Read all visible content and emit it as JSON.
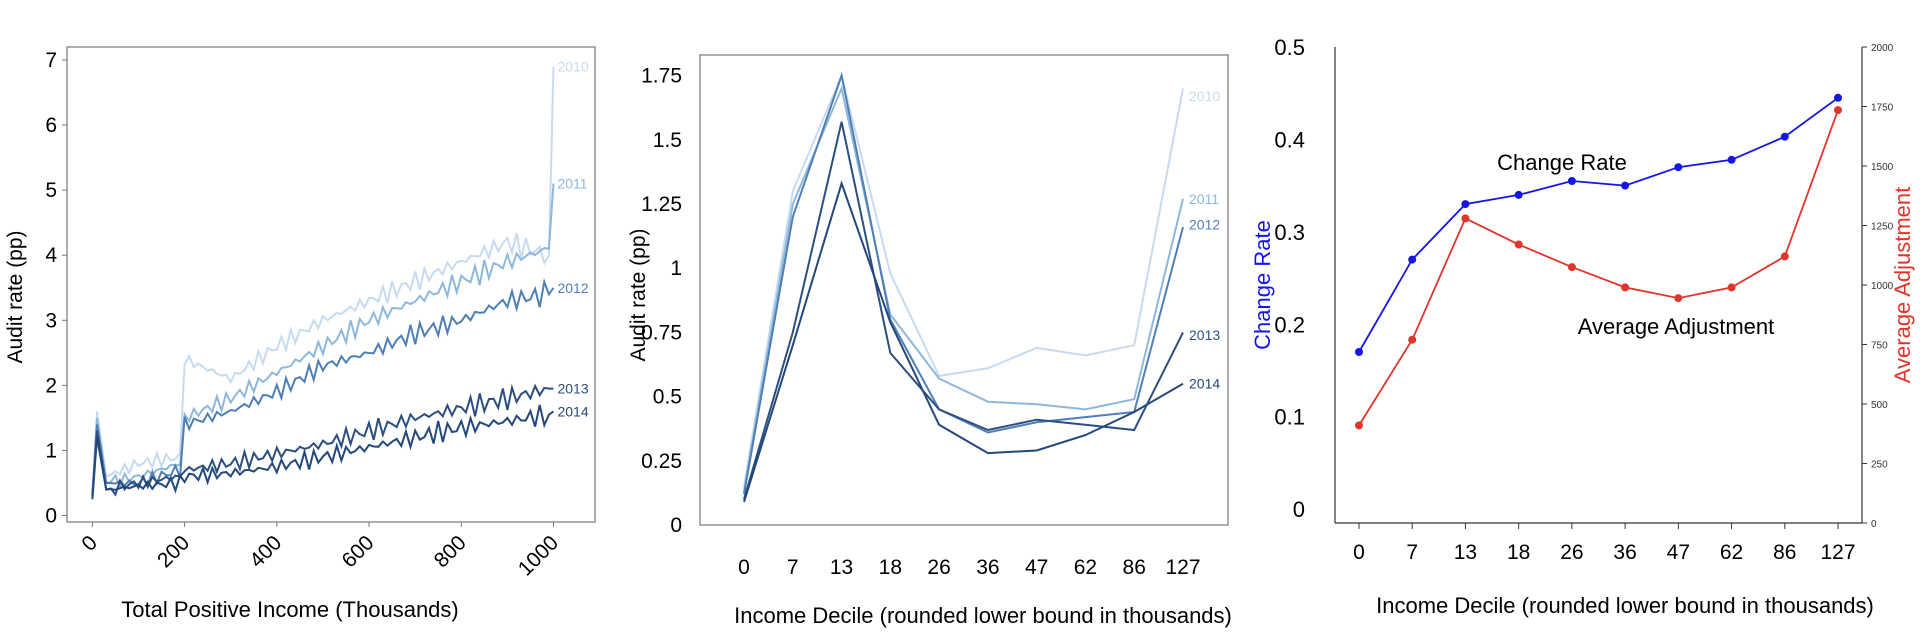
{
  "charts": {
    "chart1": {
      "xlabel": "Total Positive Income (Thousands)",
      "ylabel": "Audit rate (pp)",
      "xlim": [
        -55,
        1090
      ],
      "ylim": [
        -0.1,
        7.2
      ],
      "xticks": [
        "0",
        "200",
        "400",
        "600",
        "800",
        "1000"
      ],
      "yticks": [
        "0",
        "1",
        "2",
        "3",
        "4",
        "5",
        "6",
        "7"
      ]
    },
    "chart2": {
      "xlabel": "Income Decile (rounded lower bound in thousands)",
      "ylabel": "Audit rate (pp)",
      "ylim": [
        0,
        1.83
      ],
      "yticks": [
        "0",
        "0.25",
        "0.5",
        "0.75",
        "1",
        "1.25",
        "1.5",
        "1.75"
      ]
    },
    "chart3": {
      "xlabel": "Income Decile (rounded lower bound in thousands)",
      "ylabel_left": "Change Rate",
      "ylabel_right": "Average Adjustment",
      "ylim_left": [
        -0.015,
        0.5
      ],
      "ylim_right": [
        0,
        2000
      ],
      "yticks_left": [
        "0",
        "0.1",
        "0.2",
        "0.3",
        "0.4",
        "0.5"
      ],
      "yticks_right": [
        "0",
        "250",
        "500",
        "750",
        "1000",
        "1250",
        "1500",
        "1750",
        "2000"
      ],
      "annotation_change": "Change Rate",
      "annotation_adjust": "Average Adjustment"
    }
  },
  "colors": {
    "2010": "#c6dbef",
    "2011": "#8eb8db",
    "2012": "#4f7fb5",
    "2013": "#2c4f80",
    "2014": "#24487a",
    "change": "#1515e8",
    "adjust": "#e0352b"
  },
  "chart_data": [
    {
      "type": "line",
      "xlabel": "Total Positive Income (Thousands)",
      "ylabel": "Audit rate (pp)",
      "xlim": [
        -55,
        1090
      ],
      "ylim": [
        0,
        7
      ],
      "x_anchor": [
        0,
        10,
        30,
        100,
        190,
        200,
        300,
        400,
        500,
        600,
        700,
        800,
        900,
        990,
        1000
      ],
      "series": [
        {
          "name": "2010",
          "values": [
            0.3,
            1.6,
            0.6,
            0.8,
            0.9,
            2.4,
            2.1,
            2.6,
            3.0,
            3.3,
            3.6,
            3.9,
            4.2,
            4.0,
            6.9
          ]
        },
        {
          "name": "2011",
          "values": [
            0.3,
            1.5,
            0.5,
            0.6,
            0.8,
            1.5,
            1.8,
            2.2,
            2.6,
            3.0,
            3.3,
            3.6,
            3.9,
            4.1,
            5.1
          ]
        },
        {
          "name": "2012",
          "values": [
            0.3,
            1.4,
            0.5,
            0.5,
            0.7,
            1.4,
            1.6,
            1.9,
            2.3,
            2.5,
            2.8,
            3.0,
            3.3,
            3.4,
            3.5
          ]
        },
        {
          "name": "2013",
          "values": [
            0.3,
            1.3,
            0.4,
            0.5,
            0.6,
            0.7,
            0.8,
            0.95,
            1.1,
            1.3,
            1.5,
            1.65,
            1.8,
            1.95,
            1.95
          ]
        },
        {
          "name": "2014",
          "values": [
            0.25,
            1.2,
            0.4,
            0.45,
            0.5,
            0.6,
            0.65,
            0.75,
            0.9,
            1.05,
            1.2,
            1.35,
            1.45,
            1.55,
            1.6
          ]
        }
      ]
    },
    {
      "type": "line",
      "xlabel": "Income Decile (rounded lower bound in thousands)",
      "ylabel": "Audit rate (pp)",
      "categories": [
        "0",
        "7",
        "13",
        "18",
        "26",
        "36",
        "47",
        "62",
        "86",
        "127"
      ],
      "ylim": [
        0,
        1.83
      ],
      "series": [
        {
          "name": "2010",
          "values": [
            0.15,
            1.3,
            1.75,
            0.98,
            0.58,
            0.61,
            0.69,
            0.66,
            0.7,
            1.7
          ]
        },
        {
          "name": "2011",
          "values": [
            0.13,
            1.25,
            1.7,
            0.82,
            0.57,
            0.48,
            0.47,
            0.45,
            0.49,
            1.27
          ]
        },
        {
          "name": "2012",
          "values": [
            0.12,
            1.2,
            1.75,
            0.8,
            0.45,
            0.36,
            0.4,
            0.42,
            0.44,
            1.16
          ]
        },
        {
          "name": "2013",
          "values": [
            0.1,
            0.75,
            1.57,
            0.67,
            0.45,
            0.37,
            0.41,
            0.39,
            0.37,
            0.75
          ]
        },
        {
          "name": "2014",
          "values": [
            0.09,
            0.7,
            1.33,
            0.79,
            0.39,
            0.28,
            0.29,
            0.35,
            0.44,
            0.55
          ]
        }
      ]
    },
    {
      "type": "line",
      "xlabel": "Income Decile (rounded lower bound in thousands)",
      "categories": [
        "0",
        "7",
        "13",
        "18",
        "26",
        "36",
        "47",
        "62",
        "86",
        "127"
      ],
      "series": [
        {
          "name": "Change Rate",
          "axis": "left",
          "values": [
            0.17,
            0.27,
            0.33,
            0.34,
            0.355,
            0.35,
            0.37,
            0.378,
            0.403,
            0.445
          ]
        },
        {
          "name": "Average Adjustment",
          "axis": "right",
          "values": [
            410,
            770,
            1280,
            1170,
            1075,
            990,
            945,
            990,
            1120,
            1735
          ]
        }
      ],
      "ylabel_left": "Change Rate",
      "ylabel_right": "Average Adjustment",
      "ylim_left": [
        0,
        0.5
      ],
      "ylim_right": [
        0,
        2000
      ]
    }
  ]
}
